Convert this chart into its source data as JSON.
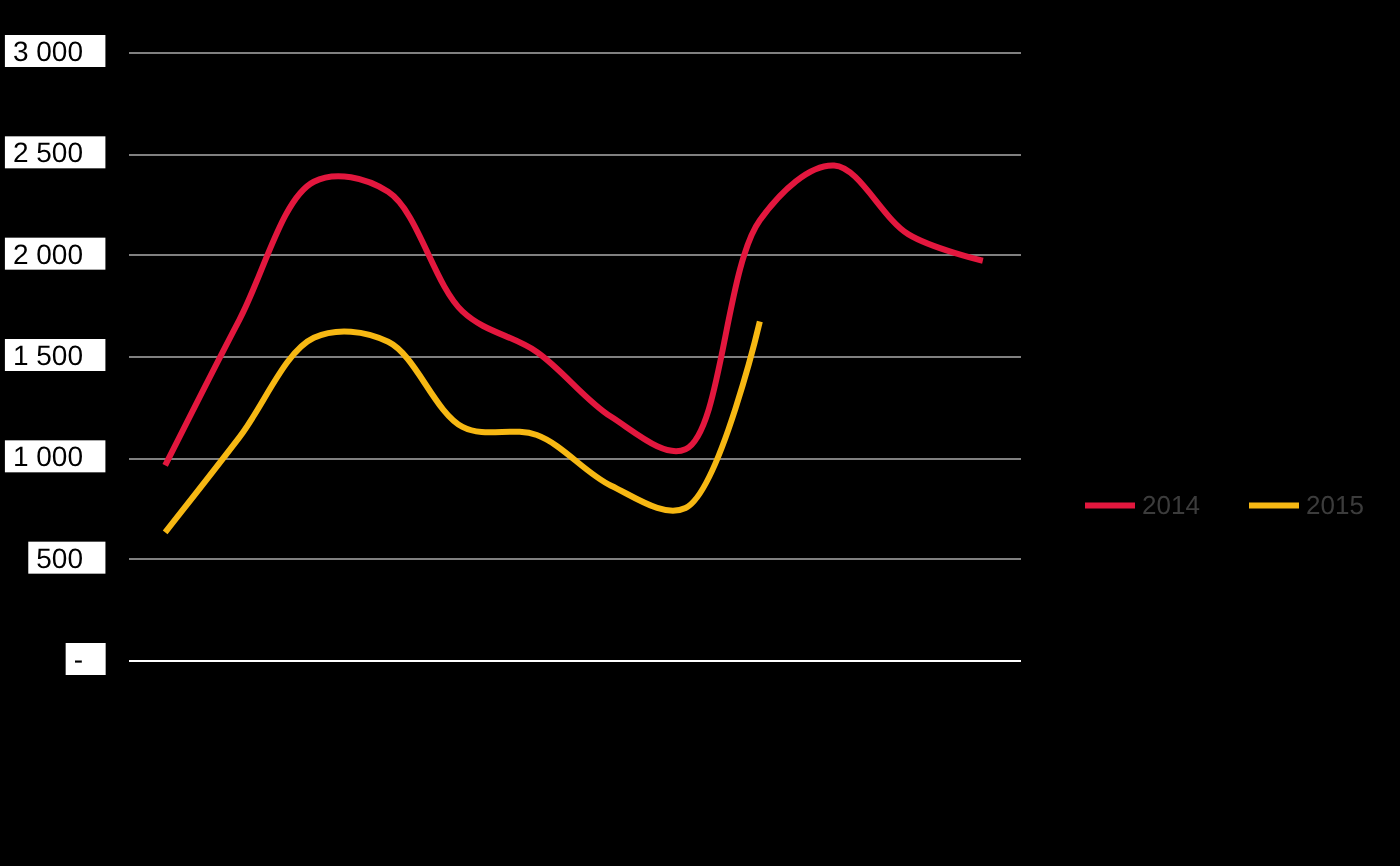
{
  "chart_data": {
    "type": "line",
    "categories": [
      null,
      null,
      null,
      null,
      null,
      null,
      null,
      null,
      null,
      null,
      null,
      null
    ],
    "series": [
      {
        "name": "2014",
        "color": "#e3173e",
        "values": [
          960,
          1680,
          2360,
          2310,
          1720,
          1520,
          1200,
          1040,
          2170,
          2440,
          2100,
          1970
        ]
      },
      {
        "name": "2015",
        "color": "#f7b813",
        "values": [
          630,
          1100,
          1590,
          1570,
          1150,
          1110,
          860,
          750,
          1670,
          null,
          null,
          null
        ]
      }
    ],
    "ylim": [
      0,
      3000
    ],
    "yticks": [
      {
        "value": 0,
        "label": "-"
      },
      500,
      {
        "value": 1000,
        "label": "1 000"
      },
      {
        "value": 1500,
        "label": "1 500"
      },
      {
        "value": 2000,
        "label": "2 000"
      },
      {
        "value": 2500,
        "label": "2 500"
      },
      {
        "value": 3000,
        "label": "3 000"
      }
    ],
    "grid": "y",
    "legend": "right",
    "tick_labels": "y"
  }
}
